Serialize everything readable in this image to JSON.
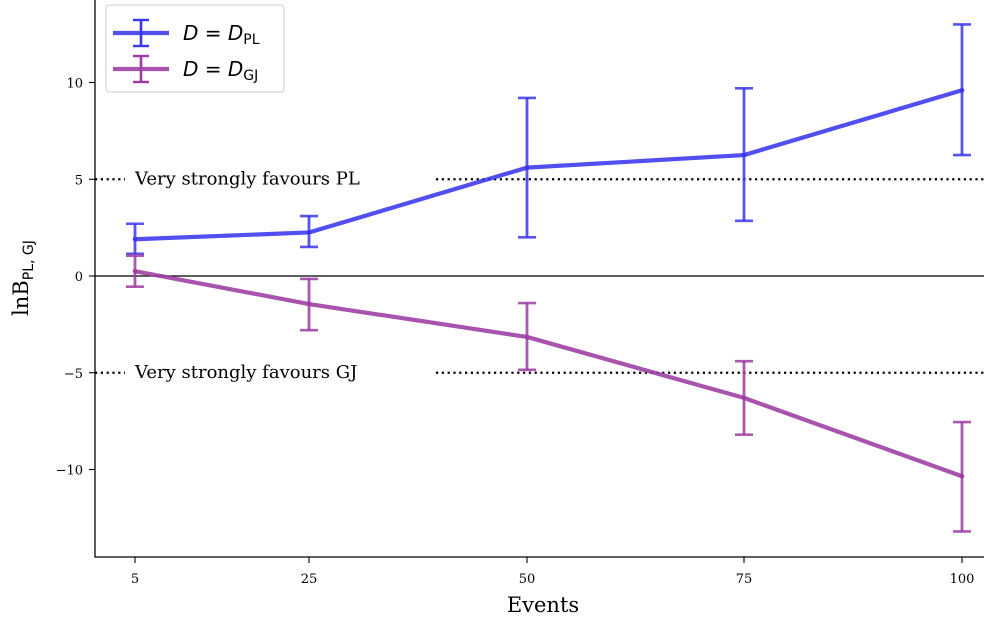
{
  "chart_data": {
    "type": "line",
    "x": [
      5,
      25,
      50,
      75,
      100
    ],
    "xlabel": "Events",
    "ylabel": "lnB",
    "ylabel_sub": "PL, GJ",
    "x_ticks": [
      5,
      25,
      50,
      75,
      100
    ],
    "y_ticks": [
      10,
      5,
      0,
      -5,
      -10
    ],
    "y_tick_labels": [
      "10",
      "5",
      "0",
      "−5",
      "−10"
    ],
    "ylim": [
      -14.5,
      14.2
    ],
    "legend_placement": "top-left",
    "grid": false,
    "series": [
      {
        "name": "D = D",
        "name_sub": "PL",
        "color": "#3a36ee",
        "values": [
          1.9,
          2.25,
          5.6,
          6.25,
          9.6
        ],
        "err_low": [
          1.15,
          1.5,
          2.0,
          2.85,
          6.25
        ],
        "err_high": [
          2.7,
          3.1,
          9.2,
          9.7,
          13.0
        ]
      },
      {
        "name": "D = D",
        "name_sub": "GJ",
        "color": "#9c3ba3",
        "values": [
          0.25,
          -1.45,
          -3.15,
          -6.3,
          -10.35
        ],
        "err_low": [
          -0.55,
          -2.8,
          -4.85,
          -8.2,
          -13.2
        ],
        "err_high": [
          1.05,
          -0.15,
          -1.4,
          -4.4,
          -7.55
        ]
      }
    ],
    "annotations": [
      {
        "text": "Very strongly favours PL",
        "y": 5
      },
      {
        "text": "Very strongly favours GJ",
        "y": -5
      }
    ]
  }
}
